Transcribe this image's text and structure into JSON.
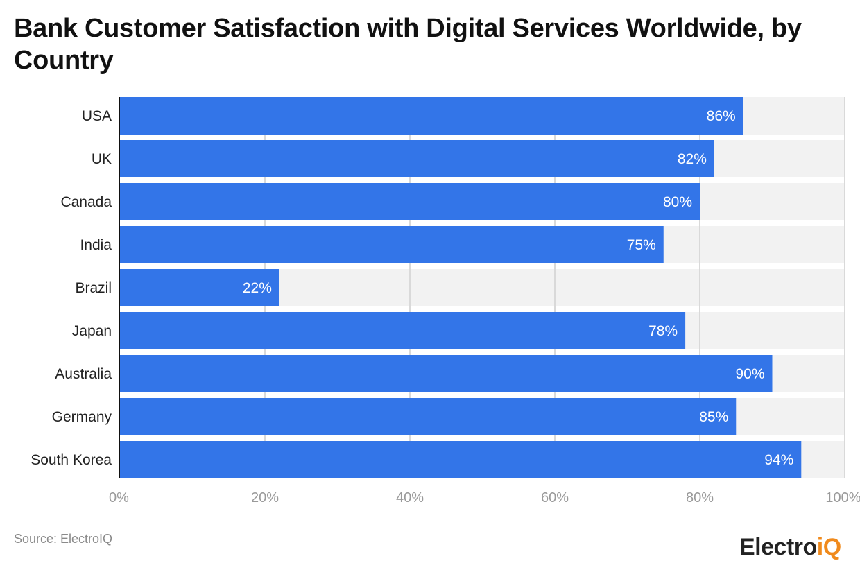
{
  "chart_data": {
    "type": "bar",
    "orientation": "horizontal",
    "title": "Bank Customer Satisfaction with Digital Services Worldwide, by Country",
    "categories": [
      "USA",
      "UK",
      "Canada",
      "India",
      "Brazil",
      "Japan",
      "Australia",
      "Germany",
      "South Korea"
    ],
    "values": [
      86,
      82,
      80,
      75,
      22,
      78,
      90,
      85,
      94
    ],
    "data_labels": [
      "86%",
      "82%",
      "80%",
      "75%",
      "22%",
      "78%",
      "90%",
      "85%",
      "94%"
    ],
    "xlim": [
      0,
      100
    ],
    "x_ticks": [
      "0%",
      "20%",
      "40%",
      "60%",
      "80%",
      "100%"
    ],
    "xlabel": "",
    "ylabel": "",
    "grid": true,
    "colors": {
      "bar": "#3375e8",
      "track": "#f2f2f2",
      "grid": "#d9d9d9"
    }
  },
  "footer": {
    "source": "Source: ElectroIQ",
    "logo_main": "Electro",
    "logo_accent": "iQ"
  }
}
